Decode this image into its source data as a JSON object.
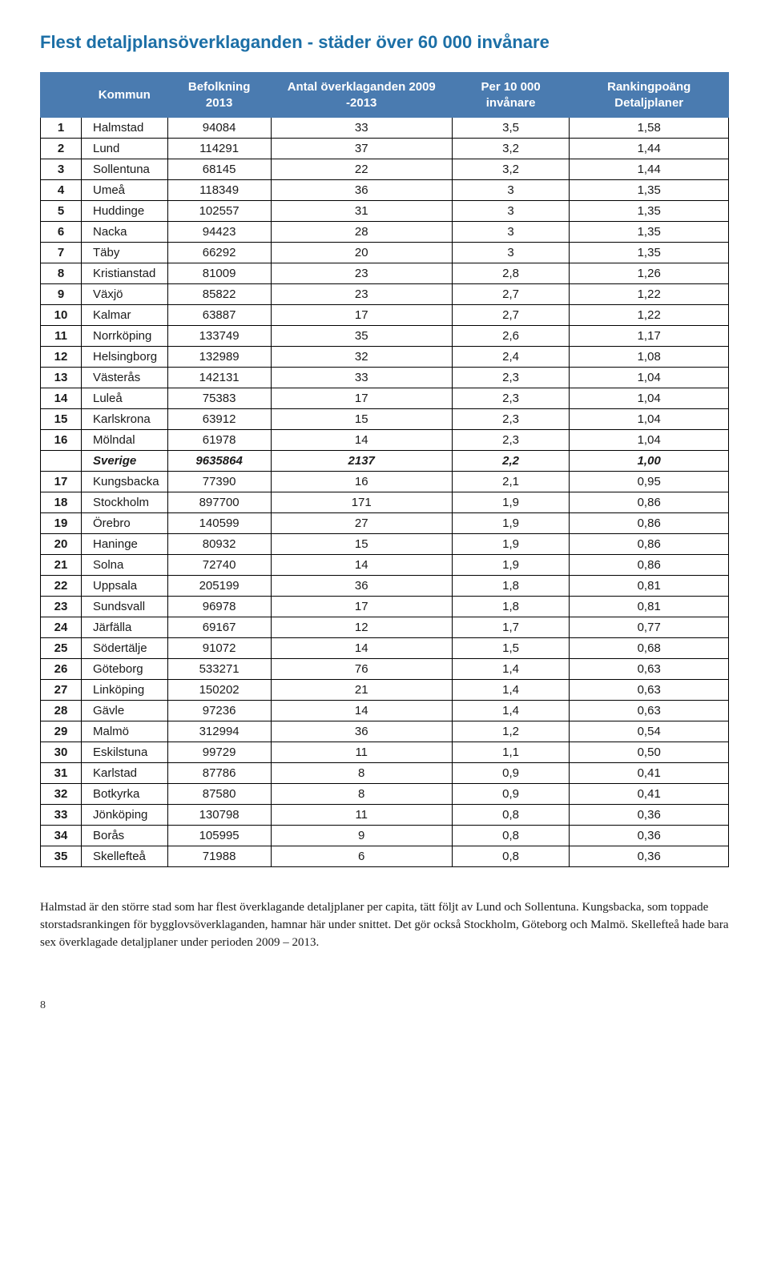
{
  "title": "Flest detaljplansöverklaganden - städer över 60 000 invånare",
  "title_color": "#1c6fa6",
  "header_bg": "#4a7bb0",
  "header_fg": "#ffffff",
  "border_color": "#000000",
  "columns": [
    "",
    "Kommun",
    "Befolkning 2013",
    "Antal överklaganden 2009 -2013",
    "Per 10 000 invånare",
    "Rankingpoäng Detaljplaner"
  ],
  "rows": [
    {
      "rank": "1",
      "kommun": "Halmstad",
      "pop": "94084",
      "antal": "33",
      "per": "3,5",
      "poang": "1,58"
    },
    {
      "rank": "2",
      "kommun": "Lund",
      "pop": "114291",
      "antal": "37",
      "per": "3,2",
      "poang": "1,44"
    },
    {
      "rank": "3",
      "kommun": "Sollentuna",
      "pop": "68145",
      "antal": "22",
      "per": "3,2",
      "poang": "1,44"
    },
    {
      "rank": "4",
      "kommun": "Umeå",
      "pop": "118349",
      "antal": "36",
      "per": "3",
      "poang": "1,35"
    },
    {
      "rank": "5",
      "kommun": "Huddinge",
      "pop": "102557",
      "antal": "31",
      "per": "3",
      "poang": "1,35"
    },
    {
      "rank": "6",
      "kommun": "Nacka",
      "pop": "94423",
      "antal": "28",
      "per": "3",
      "poang": "1,35"
    },
    {
      "rank": "7",
      "kommun": "Täby",
      "pop": "66292",
      "antal": "20",
      "per": "3",
      "poang": "1,35"
    },
    {
      "rank": "8",
      "kommun": "Kristianstad",
      "pop": "81009",
      "antal": "23",
      "per": "2,8",
      "poang": "1,26"
    },
    {
      "rank": "9",
      "kommun": "Växjö",
      "pop": "85822",
      "antal": "23",
      "per": "2,7",
      "poang": "1,22"
    },
    {
      "rank": "10",
      "kommun": "Kalmar",
      "pop": "63887",
      "antal": "17",
      "per": "2,7",
      "poang": "1,22"
    },
    {
      "rank": "11",
      "kommun": "Norrköping",
      "pop": "133749",
      "antal": "35",
      "per": "2,6",
      "poang": "1,17"
    },
    {
      "rank": "12",
      "kommun": "Helsingborg",
      "pop": "132989",
      "antal": "32",
      "per": "2,4",
      "poang": "1,08"
    },
    {
      "rank": "13",
      "kommun": "Västerås",
      "pop": "142131",
      "antal": "33",
      "per": "2,3",
      "poang": "1,04"
    },
    {
      "rank": "14",
      "kommun": "Luleå",
      "pop": "75383",
      "antal": "17",
      "per": "2,3",
      "poang": "1,04"
    },
    {
      "rank": "15",
      "kommun": "Karlskrona",
      "pop": "63912",
      "antal": "15",
      "per": "2,3",
      "poang": "1,04"
    },
    {
      "rank": "16",
      "kommun": "Mölndal",
      "pop": "61978",
      "antal": "14",
      "per": "2,3",
      "poang": "1,04"
    },
    {
      "rank": "",
      "kommun": "Sverige",
      "pop": "9635864",
      "antal": "2137",
      "per": "2,2",
      "poang": "1,00",
      "summary": true
    },
    {
      "rank": "17",
      "kommun": "Kungsbacka",
      "pop": "77390",
      "antal": "16",
      "per": "2,1",
      "poang": "0,95"
    },
    {
      "rank": "18",
      "kommun": "Stockholm",
      "pop": "897700",
      "antal": "171",
      "per": "1,9",
      "poang": "0,86"
    },
    {
      "rank": "19",
      "kommun": "Örebro",
      "pop": "140599",
      "antal": "27",
      "per": "1,9",
      "poang": "0,86"
    },
    {
      "rank": "20",
      "kommun": "Haninge",
      "pop": "80932",
      "antal": "15",
      "per": "1,9",
      "poang": "0,86"
    },
    {
      "rank": "21",
      "kommun": "Solna",
      "pop": "72740",
      "antal": "14",
      "per": "1,9",
      "poang": "0,86"
    },
    {
      "rank": "22",
      "kommun": "Uppsala",
      "pop": "205199",
      "antal": "36",
      "per": "1,8",
      "poang": "0,81"
    },
    {
      "rank": "23",
      "kommun": "Sundsvall",
      "pop": "96978",
      "antal": "17",
      "per": "1,8",
      "poang": "0,81"
    },
    {
      "rank": "24",
      "kommun": "Järfälla",
      "pop": "69167",
      "antal": "12",
      "per": "1,7",
      "poang": "0,77"
    },
    {
      "rank": "25",
      "kommun": "Södertälje",
      "pop": "91072",
      "antal": "14",
      "per": "1,5",
      "poang": "0,68"
    },
    {
      "rank": "26",
      "kommun": "Göteborg",
      "pop": "533271",
      "antal": "76",
      "per": "1,4",
      "poang": "0,63"
    },
    {
      "rank": "27",
      "kommun": "Linköping",
      "pop": "150202",
      "antal": "21",
      "per": "1,4",
      "poang": "0,63"
    },
    {
      "rank": "28",
      "kommun": "Gävle",
      "pop": "97236",
      "antal": "14",
      "per": "1,4",
      "poang": "0,63"
    },
    {
      "rank": "29",
      "kommun": "Malmö",
      "pop": "312994",
      "antal": "36",
      "per": "1,2",
      "poang": "0,54"
    },
    {
      "rank": "30",
      "kommun": "Eskilstuna",
      "pop": "99729",
      "antal": "11",
      "per": "1,1",
      "poang": "0,50"
    },
    {
      "rank": "31",
      "kommun": "Karlstad",
      "pop": "87786",
      "antal": "8",
      "per": "0,9",
      "poang": "0,41"
    },
    {
      "rank": "32",
      "kommun": "Botkyrka",
      "pop": "87580",
      "antal": "8",
      "per": "0,9",
      "poang": "0,41"
    },
    {
      "rank": "33",
      "kommun": "Jönköping",
      "pop": "130798",
      "antal": "11",
      "per": "0,8",
      "poang": "0,36"
    },
    {
      "rank": "34",
      "kommun": "Borås",
      "pop": "105995",
      "antal": "9",
      "per": "0,8",
      "poang": "0,36"
    },
    {
      "rank": "35",
      "kommun": "Skellefteå",
      "pop": "71988",
      "antal": "6",
      "per": "0,8",
      "poang": "0,36"
    }
  ],
  "footer_text": "Halmstad är den större stad som har flest överklagande detaljplaner per capita, tätt följt av Lund och Sollentuna. Kungsbacka, som toppade storstadsrankingen för bygglovsöverklaganden, hamnar här under snittet. Det gör också Stockholm, Göteborg och Malmö. Skellefteå hade bara sex överklagade detaljplaner under perioden 2009 – 2013.",
  "page_number": "8"
}
